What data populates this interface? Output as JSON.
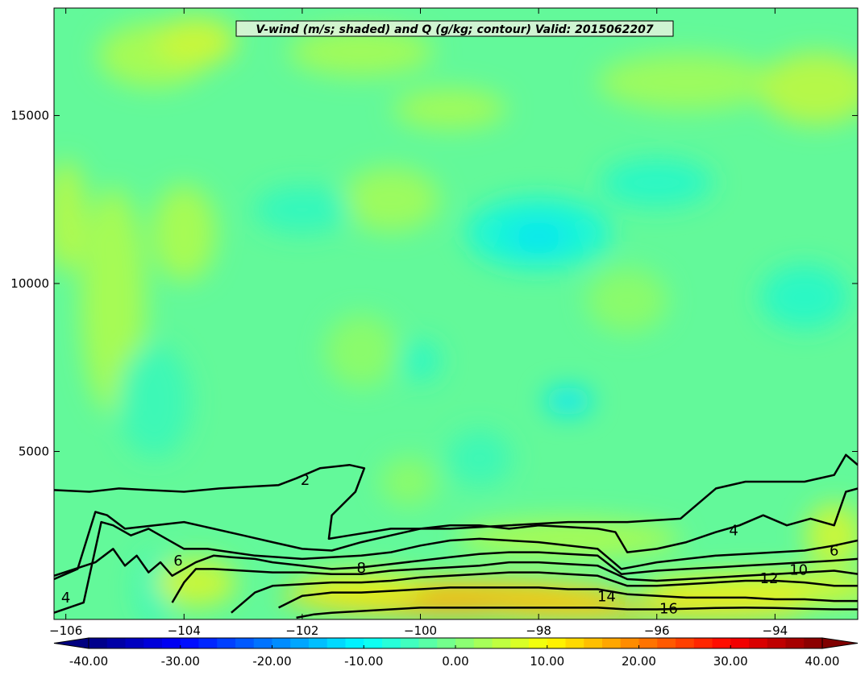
{
  "chart_data": {
    "type": "filled-contour",
    "title": "V-wind (m/s; shaded) and Q (g/kg; contour) Valid: 2015062207",
    "xlabel": "",
    "ylabel": "",
    "xlim": [
      -106.2,
      -92.6
    ],
    "ylim": [
      0,
      18200
    ],
    "x_ticks": [
      -106,
      -104,
      -102,
      -100,
      -98,
      -96,
      -94
    ],
    "x_tick_labels": [
      "−106",
      "−104",
      "−102",
      "−100",
      "−98",
      "−96",
      "−94"
    ],
    "y_ticks": [
      5000,
      10000,
      15000
    ],
    "y_tick_labels": [
      "5000",
      "10000",
      "15000"
    ],
    "shaded_variable": "V-wind (m/s)",
    "contour_variable": "Q (g/kg)",
    "contour_levels": [
      2,
      4,
      6,
      8,
      10,
      12,
      14,
      16
    ],
    "contour_labels": [
      {
        "text": "2",
        "x": -101.95,
        "y": 4150
      },
      {
        "text": "4",
        "x": -94.7,
        "y": 2650
      },
      {
        "text": "6",
        "x": -93.0,
        "y": 2050
      },
      {
        "text": "8",
        "x": -101.0,
        "y": 1530
      },
      {
        "text": "10",
        "x": -93.6,
        "y": 1480
      },
      {
        "text": "12",
        "x": -94.1,
        "y": 1220
      },
      {
        "text": "14",
        "x": -96.85,
        "y": 680
      },
      {
        "text": "16",
        "x": -95.8,
        "y": 320
      },
      {
        "text": "6",
        "x": -104.1,
        "y": 1750
      },
      {
        "text": "4",
        "x": -106.0,
        "y": 650
      }
    ],
    "contours": {
      "q2": {
        "x": [
          -106.2,
          -105.6,
          -105.1,
          -104.6,
          -104.0,
          -103.4,
          -102.9,
          -102.4,
          -102.1,
          -101.7,
          -101.2,
          -100.95,
          -101.1,
          -101.5,
          -101.55,
          -101.2,
          -100.5,
          -99.5,
          -98.5,
          -97.5,
          -96.5,
          -95.6,
          -95.0,
          -94.5,
          -94.0,
          -93.5,
          -93.0,
          -92.8,
          -92.6
        ],
        "y": [
          3850,
          3800,
          3900,
          3850,
          3800,
          3900,
          3950,
          4000,
          4200,
          4500,
          4600,
          4500,
          3800,
          3100,
          2400,
          2500,
          2700,
          2700,
          2800,
          2900,
          2900,
          3000,
          3900,
          4100,
          4100,
          4100,
          4300,
          4900,
          4600
        ]
      },
      "q4": {
        "x": [
          -106.2,
          -105.8,
          -105.5,
          -105.3,
          -105.0,
          -104.5,
          -104.0,
          -103.5,
          -103.0,
          -102.5,
          -102.0,
          -101.5,
          -101.0,
          -100.5,
          -100.0,
          -99.5,
          -99.0,
          -98.5,
          -98.0,
          -97.5,
          -97.0,
          -96.7,
          -96.5,
          -96.0,
          -95.5,
          -95.0,
          -94.6,
          -94.2,
          -93.8,
          -93.4,
          -93.0,
          -92.8,
          -92.6
        ],
        "y": [
          1200,
          1500,
          3200,
          3100,
          2700,
          2800,
          2900,
          2700,
          2500,
          2300,
          2100,
          2050,
          2300,
          2500,
          2700,
          2800,
          2800,
          2700,
          2800,
          2750,
          2700,
          2600,
          2000,
          2100,
          2300,
          2600,
          2800,
          3100,
          2800,
          3000,
          2800,
          3800,
          3900
        ]
      },
      "q6": {
        "x": [
          -106.2,
          -105.7,
          -105.4,
          -105.2,
          -104.9,
          -104.6,
          -104.3,
          -104.0,
          -103.6,
          -103.2,
          -102.8,
          -102.4,
          -102.0,
          -101.5,
          -101.0,
          -100.5,
          -100.0,
          -99.5,
          -99.0,
          -98.5,
          -98.0,
          -97.5,
          -97.0,
          -96.6,
          -96.3,
          -96.0,
          -95.5,
          -95.0,
          -94.5,
          -94.0,
          -93.5,
          -93.0,
          -92.6
        ],
        "y": [
          200,
          500,
          2900,
          2800,
          2500,
          2700,
          2400,
          2100,
          2100,
          2000,
          1900,
          1850,
          1800,
          1850,
          1900,
          2000,
          2200,
          2350,
          2400,
          2350,
          2300,
          2200,
          2100,
          1500,
          1600,
          1700,
          1800,
          1900,
          1950,
          2000,
          2050,
          2200,
          2350
        ]
      },
      "q8": {
        "x": [
          -106.2,
          -105.5,
          -105.2,
          -105.0,
          -104.8,
          -104.6,
          -104.4,
          -104.2,
          -104.0,
          -103.8,
          -103.5,
          -103.2,
          -102.8,
          -102.5,
          -102.0,
          -101.5,
          -101.0,
          -100.5,
          -100.0,
          -99.5,
          -99.0,
          -98.5,
          -98.0,
          -97.5,
          -97.0,
          -96.6,
          -96.0,
          -95.5,
          -95.0,
          -94.5,
          -94.0,
          -93.5,
          -93.0,
          -92.6
        ],
        "y": [
          1300,
          1700,
          2100,
          1600,
          1900,
          1400,
          1700,
          1300,
          1500,
          1700,
          1900,
          1850,
          1800,
          1700,
          1600,
          1500,
          1550,
          1650,
          1750,
          1850,
          1950,
          2000,
          2000,
          1950,
          1900,
          1350,
          1450,
          1500,
          1550,
          1600,
          1650,
          1700,
          1750,
          1800
        ]
      },
      "q10": {
        "x": [
          -104.2,
          -104.0,
          -103.8,
          -103.5,
          -103.0,
          -102.5,
          -102.0,
          -101.5,
          -101.0,
          -100.5,
          -100.0,
          -99.5,
          -99.0,
          -98.5,
          -98.0,
          -97.5,
          -97.0,
          -96.5,
          -96.0,
          -95.5,
          -95.0,
          -94.5,
          -94.0,
          -93.5,
          -93.0,
          -92.6
        ],
        "y": [
          500,
          1100,
          1500,
          1500,
          1450,
          1400,
          1400,
          1350,
          1350,
          1450,
          1500,
          1550,
          1600,
          1700,
          1700,
          1650,
          1600,
          1200,
          1150,
          1200,
          1250,
          1300,
          1350,
          1400,
          1450,
          1350
        ]
      },
      "q12": {
        "x": [
          -103.2,
          -102.8,
          -102.5,
          -102.0,
          -101.5,
          -101.0,
          -100.5,
          -100.0,
          -99.5,
          -99.0,
          -98.5,
          -98.0,
          -97.5,
          -97.0,
          -96.5,
          -96.0,
          -95.5,
          -95.0,
          -94.5,
          -94.0,
          -93.5,
          -93.0,
          -92.6
        ],
        "y": [
          200,
          800,
          1000,
          1050,
          1100,
          1100,
          1150,
          1250,
          1300,
          1350,
          1400,
          1400,
          1350,
          1300,
          1000,
          1000,
          1050,
          1100,
          1150,
          1150,
          1100,
          1000,
          1000
        ]
      },
      "q14": {
        "x": [
          -102.4,
          -102.0,
          -101.5,
          -101.0,
          -100.5,
          -100.0,
          -99.5,
          -99.0,
          -98.5,
          -98.0,
          -97.5,
          -97.0,
          -96.5,
          -96.0,
          -95.5,
          -95.0,
          -94.5,
          -94.0,
          -93.5,
          -93.0,
          -92.6
        ],
        "y": [
          350,
          700,
          800,
          800,
          850,
          900,
          950,
          950,
          950,
          950,
          900,
          900,
          750,
          700,
          650,
          650,
          650,
          600,
          600,
          550,
          550
        ]
      },
      "q16": {
        "x": [
          -102.1,
          -101.8,
          -101.5,
          -101.0,
          -100.5,
          -100.0,
          -99.5,
          -99.0,
          -98.5,
          -98.0,
          -97.5,
          -97.0,
          -96.5,
          -96.0,
          -95.5,
          -95.0,
          -94.5,
          -94.0,
          -93.5,
          -93.0,
          -92.6
        ],
        "y": [
          50,
          150,
          200,
          250,
          300,
          350,
          350,
          350,
          350,
          350,
          350,
          350,
          300,
          300,
          320,
          340,
          350,
          340,
          320,
          300,
          300
        ]
      }
    },
    "colorbar": {
      "min": -40,
      "max": 40,
      "extend": "both",
      "ticks": [
        -40,
        -30,
        -20,
        -10,
        0,
        10,
        20,
        30,
        40
      ],
      "tick_labels": [
        "-40.00",
        "-30.00",
        "-20.00",
        "-10.00",
        "0.00",
        "10.00",
        "20.00",
        "30.00",
        "40.00"
      ],
      "colormap": "jet"
    }
  }
}
